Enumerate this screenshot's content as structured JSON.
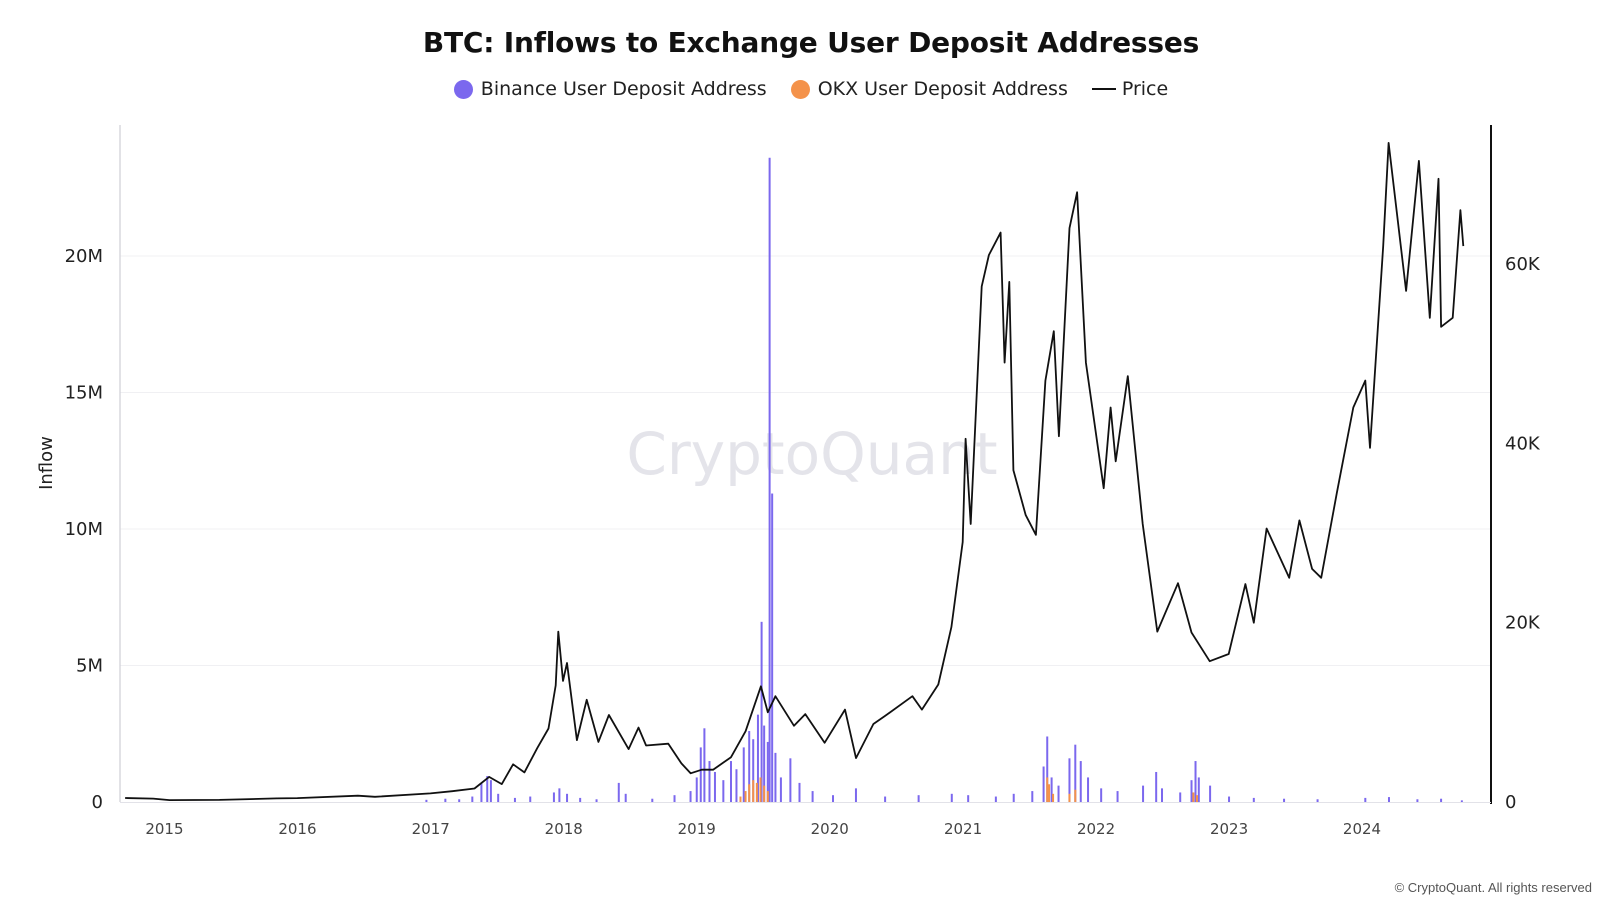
{
  "chart_data": {
    "type": "line",
    "title": "BTC: Inflows to Exchange User Deposit Addresses",
    "ylabel": "Inflow",
    "y2label": "",
    "ylim": [
      0,
      24800000
    ],
    "y2lim": [
      0,
      75500
    ],
    "xlim": [
      "2014-09-01",
      "2024-12-20"
    ],
    "legend_position": "top-center",
    "grid": true,
    "watermark": "CryptoQuant",
    "copyright": "© CryptoQuant. All rights reserved",
    "y_ticks": [
      {
        "value": 0,
        "label": "0"
      },
      {
        "value": 5000000,
        "label": "5M"
      },
      {
        "value": 10000000,
        "label": "10M"
      },
      {
        "value": 15000000,
        "label": "15M"
      },
      {
        "value": 20000000,
        "label": "20M"
      }
    ],
    "y2_ticks": [
      {
        "value": 0,
        "label": "0"
      },
      {
        "value": 20000,
        "label": "20K"
      },
      {
        "value": 40000,
        "label": "40K"
      },
      {
        "value": 60000,
        "label": "60K"
      }
    ],
    "x_ticks": [
      {
        "value": "2015-01-01",
        "label": "2015"
      },
      {
        "value": "2016-01-01",
        "label": "2016"
      },
      {
        "value": "2017-01-01",
        "label": "2017"
      },
      {
        "value": "2018-01-01",
        "label": "2018"
      },
      {
        "value": "2019-01-01",
        "label": "2019"
      },
      {
        "value": "2020-01-01",
        "label": "2020"
      },
      {
        "value": "2021-01-01",
        "label": "2021"
      },
      {
        "value": "2022-01-01",
        "label": "2022"
      },
      {
        "value": "2023-01-01",
        "label": "2023"
      },
      {
        "value": "2024-01-01",
        "label": "2024"
      }
    ],
    "series": [
      {
        "name": "Binance User Deposit Address",
        "kind": "bar",
        "axis": "left",
        "color": "#7b68ee",
        "points": [
          [
            "2016-12-20",
            80000
          ],
          [
            "2017-02-10",
            120000
          ],
          [
            "2017-03-20",
            100000
          ],
          [
            "2017-04-25",
            200000
          ],
          [
            "2017-05-20",
            700000
          ],
          [
            "2017-06-05",
            950000
          ],
          [
            "2017-06-15",
            800000
          ],
          [
            "2017-07-05",
            300000
          ],
          [
            "2017-08-20",
            150000
          ],
          [
            "2017-10-01",
            200000
          ],
          [
            "2017-12-05",
            350000
          ],
          [
            "2017-12-20",
            500000
          ],
          [
            "2018-01-10",
            300000
          ],
          [
            "2018-02-15",
            150000
          ],
          [
            "2018-04-01",
            100000
          ],
          [
            "2018-06-01",
            700000
          ],
          [
            "2018-06-20",
            300000
          ],
          [
            "2018-09-01",
            120000
          ],
          [
            "2018-11-01",
            250000
          ],
          [
            "2018-12-15",
            400000
          ],
          [
            "2019-01-01",
            900000
          ],
          [
            "2019-01-12",
            2000000
          ],
          [
            "2019-01-22",
            2700000
          ],
          [
            "2019-02-05",
            1500000
          ],
          [
            "2019-02-20",
            1100000
          ],
          [
            "2019-03-15",
            800000
          ],
          [
            "2019-04-05",
            1500000
          ],
          [
            "2019-04-20",
            1200000
          ],
          [
            "2019-05-10",
            2000000
          ],
          [
            "2019-05-25",
            2600000
          ],
          [
            "2019-06-05",
            2300000
          ],
          [
            "2019-06-18",
            3200000
          ],
          [
            "2019-06-28",
            6600000
          ],
          [
            "2019-07-05",
            2800000
          ],
          [
            "2019-07-15",
            2200000
          ],
          [
            "2019-07-20",
            23600000
          ],
          [
            "2019-07-27",
            11300000
          ],
          [
            "2019-08-05",
            1800000
          ],
          [
            "2019-08-20",
            900000
          ],
          [
            "2019-09-15",
            1600000
          ],
          [
            "2019-10-10",
            700000
          ],
          [
            "2019-11-15",
            400000
          ],
          [
            "2020-01-10",
            250000
          ],
          [
            "2020-03-13",
            500000
          ],
          [
            "2020-06-01",
            200000
          ],
          [
            "2020-09-01",
            250000
          ],
          [
            "2020-12-01",
            300000
          ],
          [
            "2021-01-15",
            250000
          ],
          [
            "2021-04-01",
            200000
          ],
          [
            "2021-05-20",
            300000
          ],
          [
            "2021-07-10",
            400000
          ],
          [
            "2021-08-10",
            1300000
          ],
          [
            "2021-08-20",
            2400000
          ],
          [
            "2021-09-01",
            900000
          ],
          [
            "2021-09-20",
            600000
          ],
          [
            "2021-10-20",
            1600000
          ],
          [
            "2021-11-05",
            2100000
          ],
          [
            "2021-11-20",
            1500000
          ],
          [
            "2021-12-10",
            900000
          ],
          [
            "2022-01-15",
            500000
          ],
          [
            "2022-03-01",
            400000
          ],
          [
            "2022-05-10",
            600000
          ],
          [
            "2022-06-15",
            1100000
          ],
          [
            "2022-07-01",
            500000
          ],
          [
            "2022-08-20",
            350000
          ],
          [
            "2022-09-20",
            800000
          ],
          [
            "2022-10-01",
            1500000
          ],
          [
            "2022-10-10",
            900000
          ],
          [
            "2022-11-10",
            600000
          ],
          [
            "2023-01-01",
            200000
          ],
          [
            "2023-03-10",
            150000
          ],
          [
            "2023-06-01",
            120000
          ],
          [
            "2023-09-01",
            100000
          ],
          [
            "2024-01-10",
            150000
          ],
          [
            "2024-03-15",
            180000
          ],
          [
            "2024-06-01",
            100000
          ],
          [
            "2024-08-05",
            120000
          ],
          [
            "2024-10-01",
            60000
          ]
        ]
      },
      {
        "name": "OKX User Deposit Address",
        "kind": "bar",
        "axis": "left",
        "color": "#f4924a",
        "points": [
          [
            "2019-05-01",
            200000
          ],
          [
            "2019-05-15",
            400000
          ],
          [
            "2019-05-25",
            650000
          ],
          [
            "2019-06-05",
            800000
          ],
          [
            "2019-06-15",
            700000
          ],
          [
            "2019-06-25",
            900000
          ],
          [
            "2019-07-05",
            600000
          ],
          [
            "2019-07-15",
            400000
          ],
          [
            "2021-08-20",
            900000
          ],
          [
            "2021-08-25",
            650000
          ],
          [
            "2021-09-05",
            300000
          ],
          [
            "2021-10-20",
            300000
          ],
          [
            "2021-11-05",
            450000
          ],
          [
            "2022-09-25",
            350000
          ],
          [
            "2022-10-05",
            250000
          ]
        ]
      },
      {
        "name": "Price",
        "kind": "line",
        "axis": "right",
        "color": "#111111",
        "points": [
          [
            "2014-09-15",
            450
          ],
          [
            "2014-12-01",
            380
          ],
          [
            "2015-01-15",
            210
          ],
          [
            "2015-06-01",
            230
          ],
          [
            "2015-11-05",
            400
          ],
          [
            "2016-01-01",
            430
          ],
          [
            "2016-06-15",
            700
          ],
          [
            "2016-08-01",
            580
          ],
          [
            "2016-12-31",
            960
          ],
          [
            "2017-03-01",
            1200
          ],
          [
            "2017-05-01",
            1500
          ],
          [
            "2017-06-10",
            2800
          ],
          [
            "2017-07-15",
            2000
          ],
          [
            "2017-08-15",
            4200
          ],
          [
            "2017-09-15",
            3300
          ],
          [
            "2017-10-20",
            6000
          ],
          [
            "2017-11-20",
            8200
          ],
          [
            "2017-12-10",
            13000
          ],
          [
            "2017-12-17",
            19000
          ],
          [
            "2017-12-30",
            13500
          ],
          [
            "2018-01-10",
            15500
          ],
          [
            "2018-02-06",
            6900
          ],
          [
            "2018-03-05",
            11400
          ],
          [
            "2018-04-06",
            6700
          ],
          [
            "2018-05-05",
            9700
          ],
          [
            "2018-06-28",
            5900
          ],
          [
            "2018-07-25",
            8300
          ],
          [
            "2018-08-15",
            6300
          ],
          [
            "2018-10-15",
            6500
          ],
          [
            "2018-11-20",
            4300
          ],
          [
            "2018-12-15",
            3200
          ],
          [
            "2019-01-15",
            3600
          ],
          [
            "2019-02-15",
            3600
          ],
          [
            "2019-04-05",
            5000
          ],
          [
            "2019-05-15",
            7900
          ],
          [
            "2019-06-26",
            12900
          ],
          [
            "2019-07-15",
            10000
          ],
          [
            "2019-08-05",
            11800
          ],
          [
            "2019-09-25",
            8500
          ],
          [
            "2019-10-26",
            9800
          ],
          [
            "2019-12-18",
            6600
          ],
          [
            "2020-02-12",
            10300
          ],
          [
            "2020-03-13",
            4900
          ],
          [
            "2020-04-30",
            8700
          ],
          [
            "2020-06-01",
            9600
          ],
          [
            "2020-08-15",
            11800
          ],
          [
            "2020-09-10",
            10300
          ],
          [
            "2020-10-25",
            13100
          ],
          [
            "2020-11-30",
            19500
          ],
          [
            "2020-12-31",
            29000
          ],
          [
            "2021-01-08",
            40500
          ],
          [
            "2021-01-22",
            31000
          ],
          [
            "2021-02-21",
            57500
          ],
          [
            "2021-03-13",
            61000
          ],
          [
            "2021-04-14",
            63500
          ],
          [
            "2021-04-25",
            49000
          ],
          [
            "2021-05-08",
            58000
          ],
          [
            "2021-05-19",
            37000
          ],
          [
            "2021-06-22",
            32000
          ],
          [
            "2021-07-20",
            29800
          ],
          [
            "2021-08-15",
            47000
          ],
          [
            "2021-09-07",
            52500
          ],
          [
            "2021-09-21",
            40800
          ],
          [
            "2021-10-20",
            64000
          ],
          [
            "2021-11-10",
            68000
          ],
          [
            "2021-12-04",
            49000
          ],
          [
            "2022-01-22",
            35000
          ],
          [
            "2022-02-10",
            44000
          ],
          [
            "2022-02-24",
            38000
          ],
          [
            "2022-03-29",
            47500
          ],
          [
            "2022-05-09",
            31000
          ],
          [
            "2022-06-18",
            19000
          ],
          [
            "2022-08-14",
            24400
          ],
          [
            "2022-09-20",
            18900
          ],
          [
            "2022-11-09",
            15700
          ],
          [
            "2022-12-31",
            16500
          ],
          [
            "2023-02-15",
            24300
          ],
          [
            "2023-03-10",
            20000
          ],
          [
            "2023-04-14",
            30500
          ],
          [
            "2023-06-15",
            25000
          ],
          [
            "2023-07-13",
            31400
          ],
          [
            "2023-08-17",
            26000
          ],
          [
            "2023-09-11",
            25000
          ],
          [
            "2023-10-24",
            34500
          ],
          [
            "2023-12-08",
            44000
          ],
          [
            "2024-01-10",
            47000
          ],
          [
            "2024-01-23",
            39500
          ],
          [
            "2024-02-28",
            62000
          ],
          [
            "2024-03-14",
            73500
          ],
          [
            "2024-05-01",
            57000
          ],
          [
            "2024-06-05",
            71500
          ],
          [
            "2024-07-05",
            54000
          ],
          [
            "2024-07-29",
            69500
          ],
          [
            "2024-08-05",
            53000
          ],
          [
            "2024-09-06",
            54000
          ],
          [
            "2024-09-27",
            66000
          ],
          [
            "2024-10-05",
            62000
          ]
        ]
      }
    ]
  }
}
